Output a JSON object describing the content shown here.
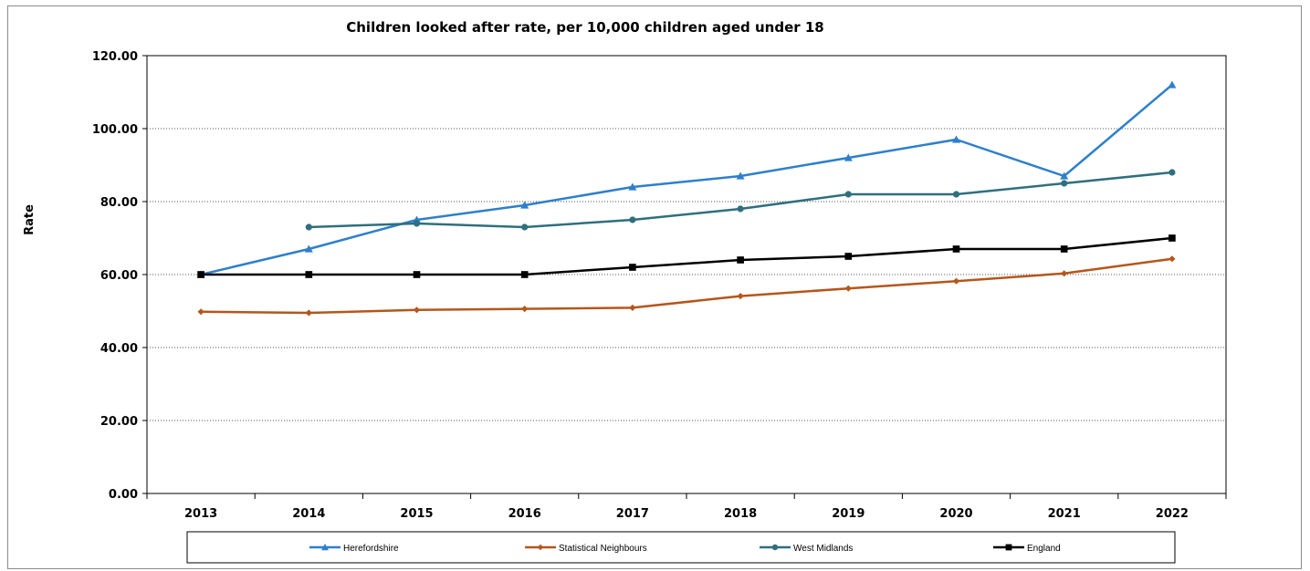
{
  "chart_data": {
    "type": "line",
    "title": "Children looked after rate, per 10,000 children aged under 18",
    "xlabel": "",
    "ylabel": "Rate",
    "categories": [
      "2013",
      "2014",
      "2015",
      "2016",
      "2017",
      "2018",
      "2019",
      "2020",
      "2021",
      "2022"
    ],
    "ylim": [
      0,
      120
    ],
    "yticks": [
      0,
      20,
      40,
      60,
      80,
      100,
      120
    ],
    "ytick_labels": [
      "0.00",
      "20.00",
      "40.00",
      "60.00",
      "80.00",
      "100.00",
      "120.00"
    ],
    "grid": "horizontal dotted",
    "legend_position": "bottom",
    "series": [
      {
        "name": "Herefordshire",
        "color": "#2e7fcb",
        "marker": "triangle",
        "values": [
          60,
          67,
          75,
          79,
          84,
          87,
          92,
          97,
          87,
          112
        ]
      },
      {
        "name": "Statistical Neighbours",
        "color": "#b5561c",
        "marker": "diamond",
        "values": [
          49.8,
          49.5,
          50.3,
          50.6,
          50.9,
          54.1,
          56.2,
          58.2,
          60.3,
          64.3
        ]
      },
      {
        "name": "West Midlands",
        "color": "#2f6f7e",
        "marker": "circle",
        "values": [
          null,
          73,
          74,
          73,
          75,
          78,
          82,
          82,
          85,
          88
        ]
      },
      {
        "name": "England",
        "color": "#000000",
        "marker": "square",
        "values": [
          60,
          60,
          60,
          60,
          62,
          64,
          65,
          67,
          67,
          70
        ]
      }
    ]
  }
}
